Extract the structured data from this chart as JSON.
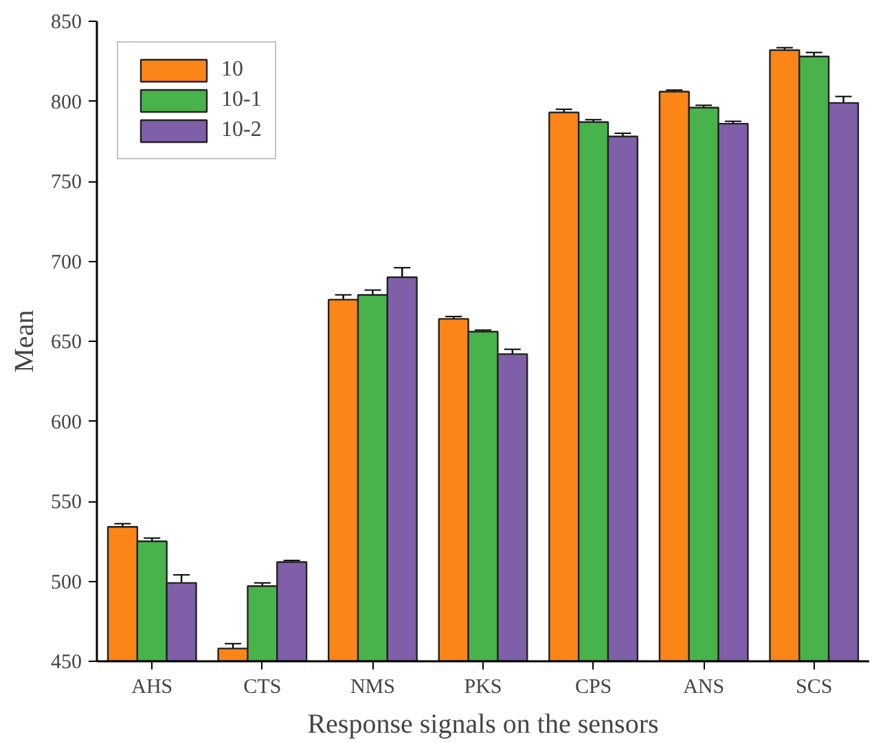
{
  "chart_data": {
    "type": "bar",
    "xlabel": "Response signals on the sensors",
    "ylabel": "Mean",
    "categories": [
      "AHS",
      "CTS",
      "NMS",
      "PKS",
      "CPS",
      "ANS",
      "SCS"
    ],
    "series": [
      {
        "name": "10",
        "color": "#fb8517",
        "values": [
          534,
          458,
          676,
          664,
          793,
          806,
          832
        ],
        "errors": [
          2,
          3,
          3,
          1.5,
          2,
          1,
          1.5
        ]
      },
      {
        "name": "10-1",
        "color": "#48b34a",
        "values": [
          525,
          497,
          679,
          656,
          787,
          796,
          828
        ],
        "errors": [
          2,
          2,
          3,
          1,
          1.5,
          1.5,
          2.5
        ]
      },
      {
        "name": "10-2",
        "color": "#7f5fa8",
        "values": [
          499,
          512,
          690,
          642,
          778,
          786,
          799
        ],
        "errors": [
          5,
          1,
          6,
          3,
          2,
          1.5,
          4
        ]
      }
    ],
    "ylim": [
      450,
      850
    ],
    "yticks": [
      450,
      500,
      550,
      600,
      650,
      700,
      750,
      800,
      850
    ],
    "grid": false,
    "legend": "top left"
  }
}
